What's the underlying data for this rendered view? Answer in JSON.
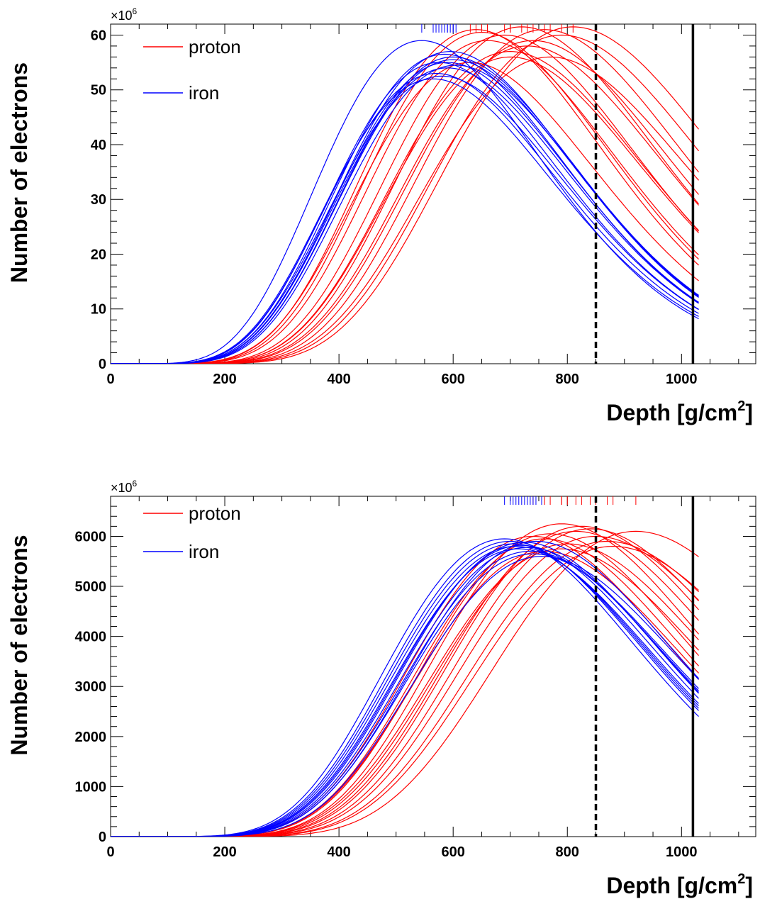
{
  "chart_data": [
    {
      "type": "line",
      "title": "",
      "xlabel": "Depth   [g/cm",
      "xlabel_sup": "2",
      "xlabel_close": "]",
      "ylabel": "Number of electrons",
      "y_multiplier": "×10",
      "y_multiplier_exp": "6",
      "xlim": [
        0,
        1130
      ],
      "ylim": [
        0,
        62
      ],
      "x_ticks": [
        0,
        200,
        400,
        600,
        800,
        1000
      ],
      "x_tick_labels": [
        "0",
        "200",
        "400",
        "600",
        "800",
        "1000"
      ],
      "y_ticks": [
        0,
        10,
        20,
        30,
        40,
        50,
        60
      ],
      "y_tick_labels": [
        "0",
        "10",
        "20",
        "30",
        "40",
        "50",
        "60"
      ],
      "grid": false,
      "legend_position": "top-left",
      "vertical_lines": [
        {
          "x": 850,
          "style": "dashed",
          "color": "#000000"
        },
        {
          "x": 1020,
          "style": "solid",
          "color": "#000000"
        }
      ],
      "series": [
        {
          "name": "proton",
          "color": "#ff0000",
          "xmax": [
            640,
            650,
            660,
            690,
            700,
            720,
            730,
            740,
            760,
            770,
            790,
            810,
            630,
            700
          ],
          "nmax": [
            61,
            60.5,
            59,
            60,
            57,
            61.5,
            58,
            59,
            61,
            56,
            60,
            61.5,
            55,
            56
          ]
        },
        {
          "name": "iron",
          "color": "#0000ff",
          "xmax": [
            545,
            565,
            575,
            585,
            590,
            595,
            600,
            570,
            580,
            590,
            600,
            605
          ],
          "nmax": [
            59,
            52,
            55,
            56.5,
            54,
            57,
            55.5,
            53,
            52.5,
            55,
            56,
            54.5
          ]
        }
      ]
    },
    {
      "type": "line",
      "title": "",
      "xlabel": "Depth   [g/cm",
      "xlabel_sup": "2",
      "xlabel_close": "]",
      "ylabel": "Number of electrons",
      "y_multiplier": "×10",
      "y_multiplier_exp": "6",
      "xlim": [
        0,
        1130
      ],
      "ylim": [
        0,
        6800
      ],
      "x_ticks": [
        0,
        200,
        400,
        600,
        800,
        1000
      ],
      "x_tick_labels": [
        "0",
        "200",
        "400",
        "600",
        "800",
        "1000"
      ],
      "y_ticks": [
        0,
        1000,
        2000,
        3000,
        4000,
        5000,
        6000
      ],
      "y_tick_labels": [
        "0",
        "1000",
        "2000",
        "3000",
        "4000",
        "5000",
        "6000"
      ],
      "grid": false,
      "legend_position": "top-left",
      "vertical_lines": [
        {
          "x": 850,
          "style": "dashed",
          "color": "#000000"
        },
        {
          "x": 1020,
          "style": "solid",
          "color": "#000000"
        }
      ],
      "series": [
        {
          "name": "proton",
          "color": "#ff0000",
          "xmax": [
            740,
            760,
            770,
            790,
            800,
            815,
            825,
            840,
            850,
            870,
            880,
            920,
            760,
            790
          ],
          "nmax": [
            6000,
            5950,
            6050,
            6250,
            5850,
            6100,
            6200,
            6150,
            6000,
            5900,
            5800,
            6100,
            5700,
            5750
          ]
        },
        {
          "name": "iron",
          "color": "#0000ff",
          "xmax": [
            690,
            700,
            705,
            710,
            715,
            720,
            725,
            730,
            735,
            740,
            745,
            755
          ],
          "nmax": [
            5950,
            5900,
            5850,
            5800,
            5750,
            5820,
            5880,
            5780,
            5700,
            5650,
            5900,
            5600
          ]
        }
      ]
    }
  ]
}
